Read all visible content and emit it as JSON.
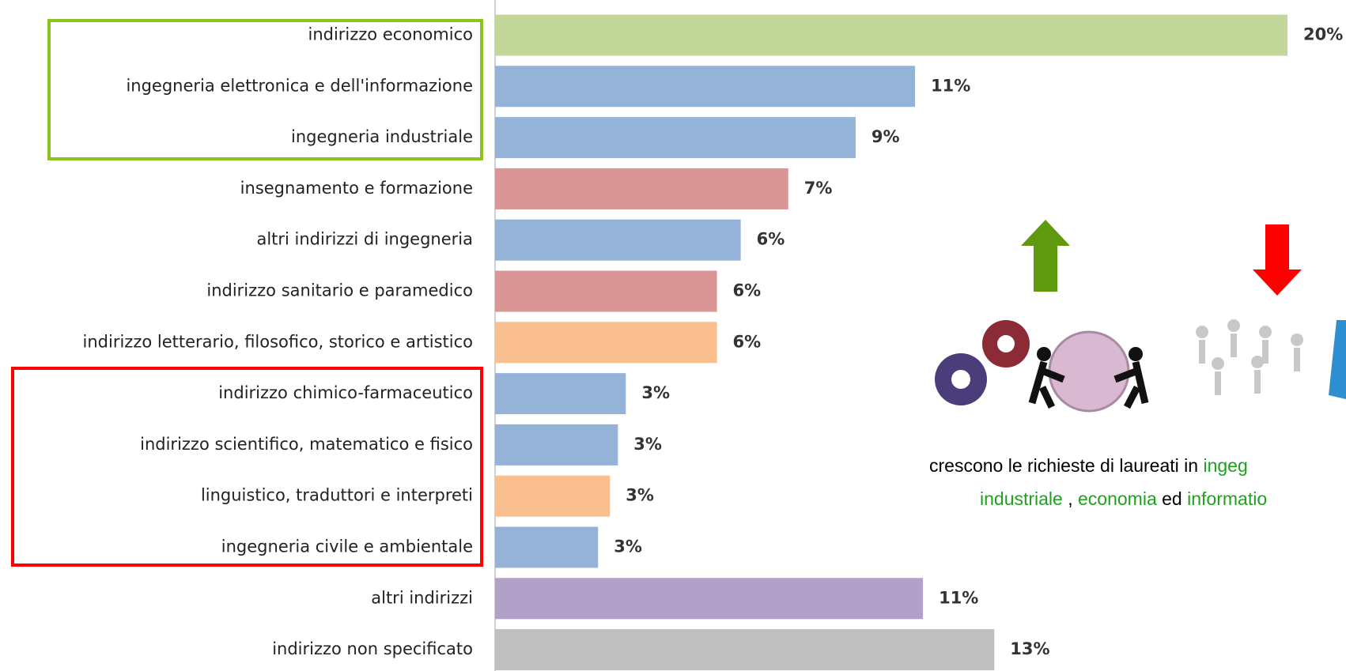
{
  "chart_data": {
    "type": "hbar",
    "categories": [
      "indirizzo economico",
      "ingegneria elettronica e dell'informazione",
      "ingegneria industriale",
      "insegnamento e formazione",
      "altri indirizzi di ingegneria",
      "indirizzo sanitario e paramedico",
      "indirizzo letterario, filosofico, storico e artistico",
      "indirizzo chimico-farmaceutico",
      "indirizzo scientifico, matematico e fisico",
      "linguistico, traduttori e interpreti",
      "ingegneria civile e ambientale",
      "altri indirizzi",
      "indirizzo non specificato"
    ],
    "values": [
      20,
      10.6,
      9.1,
      7.4,
      6.2,
      5.6,
      5.6,
      3.3,
      3.1,
      2.9,
      2.6,
      10.8,
      12.6
    ],
    "value_labels": [
      "20%",
      "11%",
      "9%",
      "7%",
      "6%",
      "6%",
      "6%",
      "3%",
      "3%",
      "3%",
      "3%",
      "11%",
      "13%"
    ],
    "colors": [
      "#c4d79b",
      "#95b3d7",
      "#95b3d7",
      "#da9694",
      "#95b3d7",
      "#da9694",
      "#fabf8f",
      "#95b3d7",
      "#95b3d7",
      "#fabf8f",
      "#95b3d7",
      "#b1a0c7",
      "#bfbfbf"
    ],
    "annotation": [
      [
        {
          "text": "crescono le richieste di laureati in ",
          "color": "#000000"
        },
        {
          "text": "ingeg",
          "color": "#1fa01f"
        }
      ],
      [
        {
          "text": "industriale",
          "color": "#1fa01f"
        },
        {
          "text": " , ",
          "color": "#000000"
        },
        {
          "text": "economia",
          "color": "#1fa01f"
        },
        {
          "text": " ed ",
          "color": "#000000"
        },
        {
          "text": "informatio",
          "color": "#1fa01f"
        }
      ]
    ]
  }
}
